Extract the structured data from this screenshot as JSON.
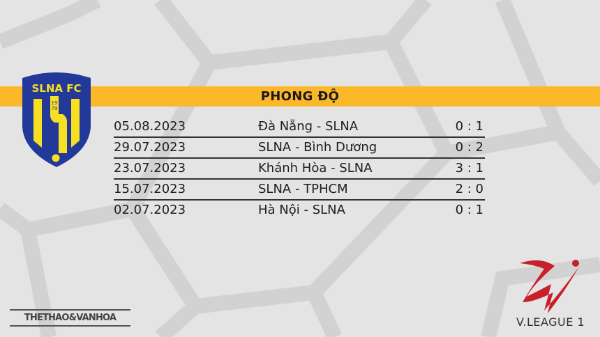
{
  "banner": {
    "title": "PHONG ĐỘ"
  },
  "crest": {
    "text": "SLNA FC",
    "year_top": "19",
    "year_bottom": "79"
  },
  "matches": [
    {
      "date": "05.08.2023",
      "match": "Đà Nẵng - SLNA",
      "score": "0 : 1"
    },
    {
      "date": "29.07.2023",
      "match": "SLNA - Bình Dương",
      "score": "0 : 2"
    },
    {
      "date": "23.07.2023",
      "match": "Khánh Hòa - SLNA",
      "score": "3 : 1"
    },
    {
      "date": "15.07.2023",
      "match": "SLNA - TPHCM",
      "score": "2 : 0"
    },
    {
      "date": "02.07.2023",
      "match": "Hà Nội - SLNA",
      "score": "0 : 1"
    }
  ],
  "footer": {
    "brand": "THETHAO&VANHOA",
    "league": "V.LEAGUE 1"
  },
  "colors": {
    "banner": "#fbb829",
    "crest_blue": "#23399a",
    "crest_yellow": "#f7e022",
    "league_red": "#c8202a"
  }
}
